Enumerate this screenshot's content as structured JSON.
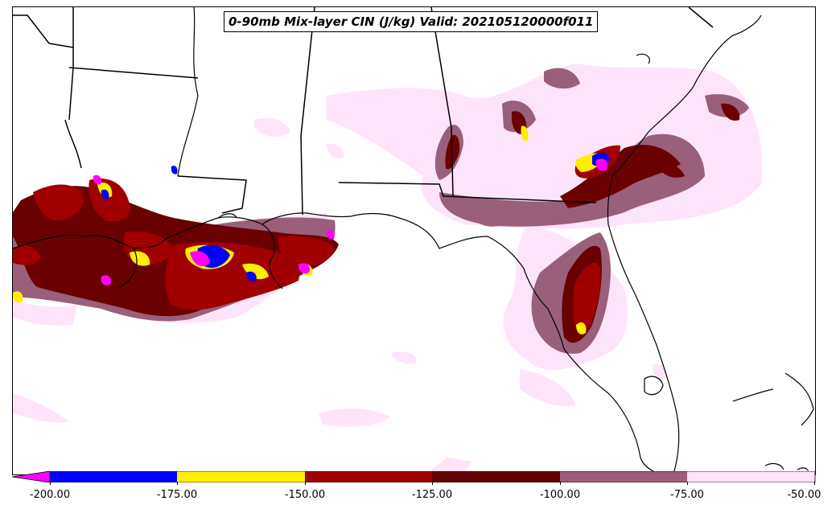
{
  "title": "0-90mb Mix-layer CIN (J/kg) Valid: 202105120000f011",
  "colorbar": {
    "ticks": [
      "-200.00",
      "-175.00",
      "-150.00",
      "-125.00",
      "-100.00",
      "-75.00",
      "-50.00"
    ],
    "bins": [
      {
        "range": "< -200",
        "color": "#ff00ff"
      },
      {
        "range": "-200 to -175",
        "color": "#0000ff"
      },
      {
        "range": "-175 to -150",
        "color": "#ffee00"
      },
      {
        "range": "-150 to -125",
        "color": "#a00000"
      },
      {
        "range": "-125 to -100",
        "color": "#640000"
      },
      {
        "range": "-100 to -75",
        "color": "#9a5f7a"
      },
      {
        "range": "-75 to -50",
        "color": "#fde4fb"
      }
    ],
    "extend": "min"
  }
}
